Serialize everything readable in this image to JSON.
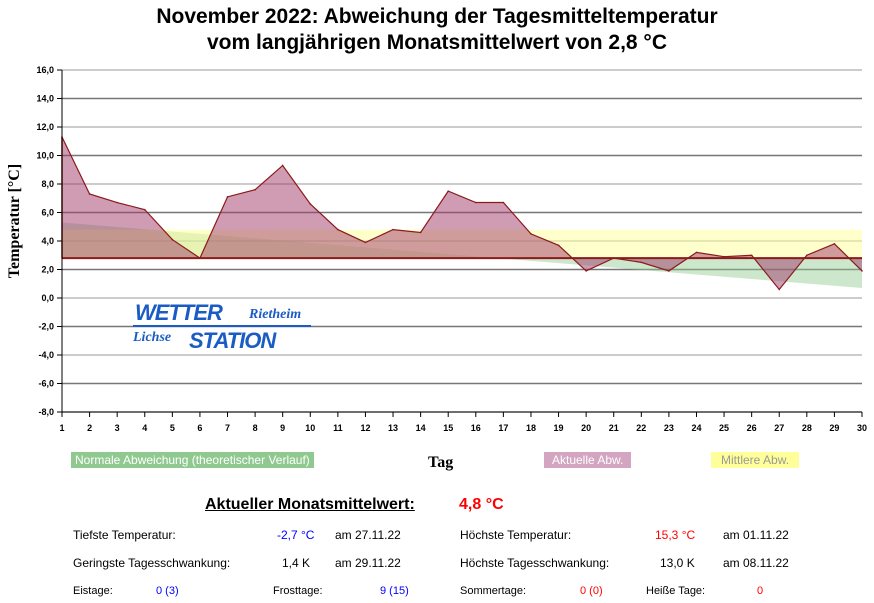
{
  "chart_data": {
    "type": "area",
    "title": [
      "November 2022: Abweichung der Tagesmitteltemperatur",
      "vom langjährigen Monatsmittelwert von 2,8 °C"
    ],
    "xlabel": "Tag",
    "ylabel": "Temperatur [°C]",
    "ylim": [
      -8,
      16
    ],
    "yticks": [
      "16,0",
      "14,0",
      "12,0",
      "10,0",
      "8,0",
      "6,0",
      "4,0",
      "2,0",
      "0,0",
      "-2,0",
      "-4,0",
      "-6,0",
      "-8,0"
    ],
    "ytick_values": [
      16,
      14,
      12,
      10,
      8,
      6,
      4,
      2,
      0,
      -2,
      -4,
      -6,
      -8
    ],
    "x": [
      1,
      2,
      3,
      4,
      5,
      6,
      7,
      8,
      9,
      10,
      11,
      12,
      13,
      14,
      15,
      16,
      17,
      18,
      19,
      20,
      21,
      22,
      23,
      24,
      25,
      26,
      27,
      28,
      29,
      30
    ],
    "baseline": 2.8,
    "grid": true,
    "legend_placement": "bottom",
    "series": [
      {
        "name": "Normale Abweichung (theoretischer Verlauf)",
        "color": "#8fc98f",
        "start": 5.3,
        "end": 0.7
      },
      {
        "name": "Aktuelle Abw.",
        "color": "#d4a5c0",
        "values": [
          11.3,
          7.3,
          6.7,
          6.2,
          4.1,
          2.8,
          7.1,
          7.6,
          9.3,
          6.6,
          4.8,
          3.9,
          4.8,
          4.6,
          7.5,
          6.7,
          6.7,
          4.5,
          3.7,
          1.9,
          2.8,
          2.5,
          1.9,
          3.2,
          2.9,
          3.0,
          0.6,
          3.0,
          3.8,
          1.9
        ]
      },
      {
        "name": "Mittlere Abw.",
        "color": "#ffff99",
        "value": 4.8
      }
    ]
  },
  "logo": {
    "line1": "WETTER",
    "line1b": "Rietheim",
    "line2a": "Lichse",
    "line2": "STATION"
  },
  "stats": {
    "monthly_mean_label": "Aktueller Monatsmittelwert:",
    "monthly_mean_value": "4,8 °C",
    "min_temp_label": "Tiefste Temperatur:",
    "min_temp_value": "-2,7 °C",
    "min_temp_date": "am 27.11.22",
    "max_temp_label": "Höchste Temperatur:",
    "max_temp_value": "15,3 °C",
    "max_temp_date": "am 01.11.22",
    "min_range_label": "Geringste Tagesschwankung:",
    "min_range_value": "1,4 K",
    "min_range_date": "am 29.11.22",
    "max_range_label": "Höchste Tagesschwankung:",
    "max_range_value": "13,0 K",
    "max_range_date": "am 08.11.22",
    "ice_label": "Eistage:",
    "ice_value": "0 (3)",
    "frost_label": "Frosttage:",
    "frost_value": "9 (15)",
    "summer_label": "Sommertage:",
    "summer_value": "0 (0)",
    "hot_label": "Heiße Tage:",
    "hot_value": "0"
  }
}
